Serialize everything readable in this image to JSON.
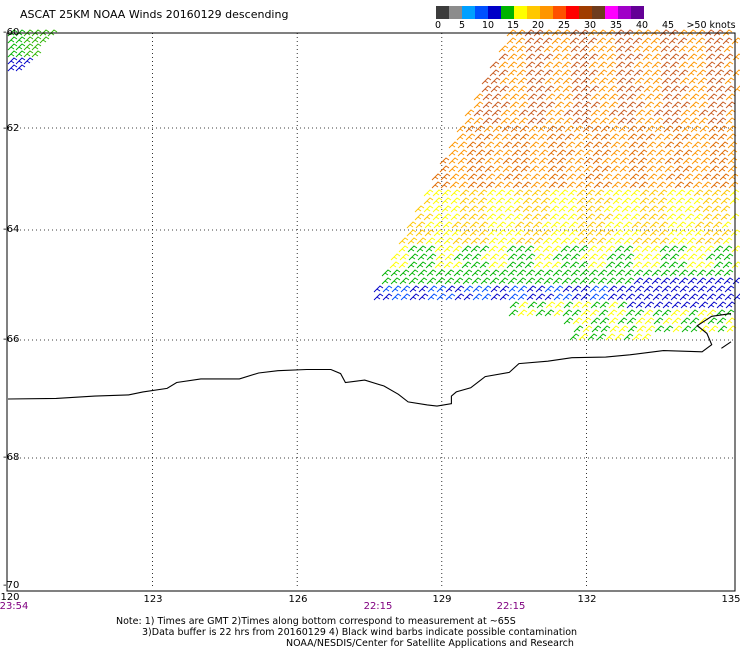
{
  "title": "ASCAT 25KM NOAA Winds 20160129 descending",
  "legend": {
    "colors": [
      "#3c3c3c",
      "#8c8c8c",
      "#00a0ff",
      "#0050ff",
      "#0000c8",
      "#00b400",
      "#ffff00",
      "#ffc800",
      "#ff9600",
      "#ff5000",
      "#ff0000",
      "#a03c00",
      "#6e3c1e",
      "#ff00ff",
      "#a000c8",
      "#640096"
    ],
    "labels": [
      "0",
      "5",
      "10",
      "15",
      "20",
      "25",
      "30",
      "35",
      "40",
      "45",
      ">50 knots"
    ]
  },
  "latitudes": [
    "-60",
    "-62",
    "-64",
    "-66",
    "-68",
    "-70"
  ],
  "longitudes": [
    "120",
    "123",
    "126",
    "129",
    "132",
    "135"
  ],
  "times": [
    "23:54",
    "22:15",
    "22:15"
  ],
  "notes": [
    "Note: 1) Times are GMT 2)Times along bottom correspond to measurement at ~65S",
    "3)Data buffer is 22 hrs from 20160129 4) Black wind barbs indicate possible contamination",
    "NOAA/NESDIS/Center for Satellite Applications and Research"
  ],
  "map": {
    "lon_range": [
      120,
      135
    ],
    "lat_range": [
      -70,
      -60
    ],
    "coastline": [
      [
        120,
        -67.0
      ],
      [
        121,
        -66.99
      ],
      [
        121.8,
        -66.95
      ],
      [
        122.5,
        -66.93
      ],
      [
        122.8,
        -66.88
      ],
      [
        123.3,
        -66.82
      ],
      [
        123.5,
        -66.72
      ],
      [
        124.0,
        -66.66
      ],
      [
        124.8,
        -66.66
      ],
      [
        125.2,
        -66.56
      ],
      [
        125.6,
        -66.52
      ],
      [
        126.2,
        -66.5
      ],
      [
        126.7,
        -66.5
      ],
      [
        126.9,
        -66.57
      ],
      [
        127.0,
        -66.72
      ],
      [
        127.4,
        -66.68
      ],
      [
        127.8,
        -66.78
      ],
      [
        128.1,
        -66.92
      ],
      [
        128.3,
        -67.05
      ],
      [
        128.7,
        -67.1
      ],
      [
        128.9,
        -67.12
      ],
      [
        129.2,
        -67.08
      ],
      [
        129.2,
        -66.95
      ],
      [
        129.3,
        -66.88
      ],
      [
        129.6,
        -66.81
      ],
      [
        129.9,
        -66.62
      ],
      [
        130.4,
        -66.55
      ],
      [
        130.6,
        -66.4
      ],
      [
        131.2,
        -66.36
      ],
      [
        131.7,
        -66.3
      ],
      [
        132.4,
        -66.29
      ],
      [
        132.9,
        -66.25
      ],
      [
        133.6,
        -66.18
      ],
      [
        134.4,
        -66.2
      ],
      [
        134.6,
        -66.08
      ],
      [
        134.5,
        -65.88
      ],
      [
        134.3,
        -65.74
      ],
      [
        134.6,
        -65.57
      ],
      [
        135.0,
        -65.52
      ]
    ],
    "coastline_east": [
      [
        134.8,
        -66.14
      ],
      [
        135.0,
        -66.03
      ]
    ]
  }
}
